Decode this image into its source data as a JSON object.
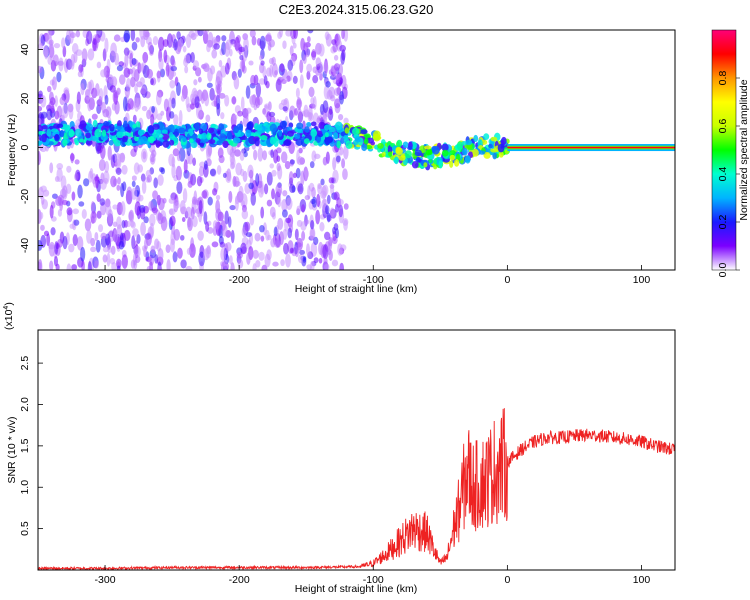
{
  "title": "C2E3.2024.315.06.23.G20",
  "chart_data": [
    {
      "type": "heatmap",
      "xlabel": "Height of straight line (km)",
      "ylabel": "Frequency (Hz)",
      "xlim": [
        -350,
        125
      ],
      "ylim": [
        -50,
        48
      ],
      "xticks": [
        -300,
        -200,
        -100,
        0,
        100
      ],
      "yticks": [
        40,
        20,
        0,
        -20,
        -40
      ],
      "colorbar": {
        "label": "Normalized spectral amplitude",
        "range": [
          0,
          1
        ],
        "ticks": [
          "0.0",
          "0.2",
          "0.4",
          "0.6",
          "0.8"
        ],
        "colors": [
          "#ffffff",
          "#7b00ff",
          "#1a1aff",
          "#00b4ff",
          "#00ffd0",
          "#00ff00",
          "#c8ff00",
          "#ffff00",
          "#ff9600",
          "#ff0000",
          "#ff0078"
        ]
      },
      "features": [
        {
          "name": "scattered low-amplitude noise",
          "x_range": [
            -350,
            -120
          ],
          "y_range": [
            -50,
            48
          ]
        },
        {
          "name": "main frequency band",
          "x": [
            -350,
            -300,
            -250,
            -200,
            -150,
            -120,
            -100,
            -80,
            -60,
            -40,
            -20,
            0,
            125
          ],
          "y": [
            5,
            6,
            5,
            5,
            6,
            5,
            2,
            -2,
            -4,
            -3,
            1,
            0,
            0
          ]
        },
        {
          "name": "steady high-amplitude line",
          "x_range": [
            0,
            125
          ],
          "y": 0
        }
      ]
    },
    {
      "type": "line",
      "xlabel": "Height of straight line (km)",
      "ylabel": "SNR (10 * v/v)",
      "y_multiplier": "(x10",
      "y_multiplier_exponent": "4",
      "xlim": [
        -350,
        125
      ],
      "ylim": [
        0,
        2.9
      ],
      "xticks": [
        -300,
        -200,
        -100,
        0,
        100
      ],
      "yticks": [
        0.5,
        1.0,
        1.5,
        2.0,
        2.5
      ],
      "series": [
        {
          "color": "#ee2222",
          "x": [
            -350,
            -300,
            -250,
            -200,
            -150,
            -110,
            -100,
            -90,
            -80,
            -70,
            -60,
            -55,
            -50,
            -45,
            -40,
            -35,
            -30,
            -25,
            -20,
            -15,
            -10,
            -5,
            0,
            10,
            20,
            30,
            40,
            50,
            60,
            70,
            80,
            90,
            100,
            110,
            125
          ],
          "y": [
            0.02,
            0.02,
            0.03,
            0.03,
            0.03,
            0.04,
            0.08,
            0.2,
            0.35,
            0.5,
            0.45,
            0.25,
            0.08,
            0.15,
            0.5,
            0.8,
            1.2,
            1.0,
            1.05,
            1.1,
            1.2,
            1.25,
            1.3,
            1.45,
            1.55,
            1.6,
            1.6,
            1.62,
            1.63,
            1.62,
            1.6,
            1.58,
            1.55,
            1.5,
            1.45
          ]
        }
      ]
    }
  ]
}
